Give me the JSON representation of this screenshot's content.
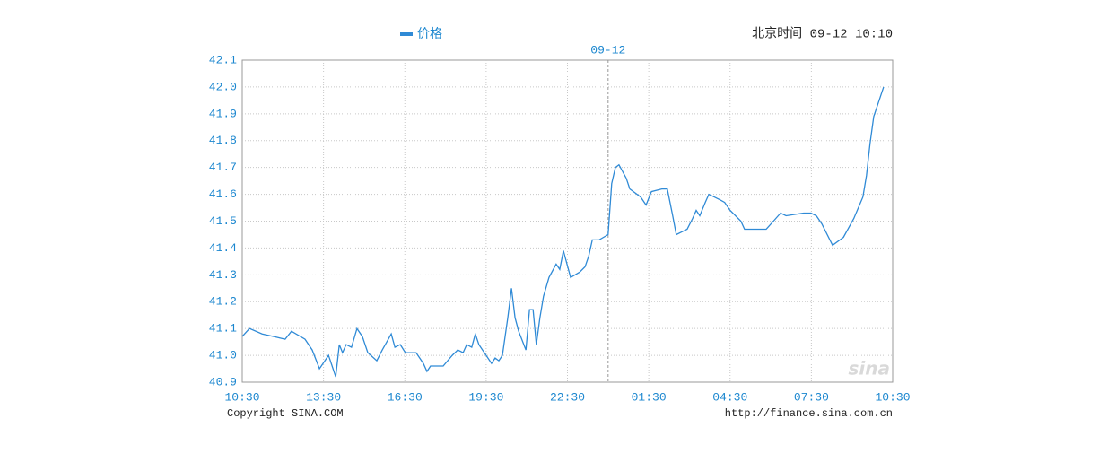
{
  "chart_data": {
    "type": "line",
    "legend": "价格",
    "header": "北京时间 09-12 10:10",
    "date_label": "09-12",
    "copyright": "Copyright  SINA.COM",
    "source_url": "http://finance.sina.com.cn",
    "watermark": "sina",
    "color": "#2f8ad6",
    "grid": true,
    "xlim": [
      "10:30",
      "10:30"
    ],
    "xticks": [
      "10:30",
      "13:30",
      "16:30",
      "19:30",
      "22:30",
      "01:30",
      "04:30",
      "07:30",
      "10:30"
    ],
    "ylim": [
      40.9,
      42.1
    ],
    "yticks": [
      40.9,
      {
        "value": 41,
        "label": "41.0"
      },
      41.1,
      41.2,
      41.3,
      41.4,
      41.5,
      41.6,
      41.7,
      41.8,
      41.9,
      {
        "value": 42,
        "label": "42.0"
      },
      42.1
    ],
    "x": [
      "10:30",
      "10:46",
      "11:14",
      "11:40",
      "12:05",
      "12:19",
      "12:49",
      "13:05",
      "13:21",
      "13:41",
      "13:57",
      "14:05",
      "14:12",
      "14:20",
      "14:32",
      "14:44",
      "14:56",
      "15:08",
      "15:28",
      "15:40",
      "16:00",
      "16:08",
      "16:20",
      "16:31",
      "16:55",
      "17:11",
      "17:19",
      "17:27",
      "17:55",
      "18:15",
      "18:27",
      "18:39",
      "18:47",
      "18:58",
      "19:06",
      "19:14",
      "19:34",
      "19:42",
      "19:50",
      "19:58",
      "20:06",
      "20:18",
      "20:26",
      "20:34",
      "20:42",
      "20:58",
      "21:06",
      "21:14",
      "21:21",
      "21:29",
      "21:37",
      "21:49",
      "22:05",
      "22:13",
      "22:21",
      "22:29",
      "22:37",
      "22:57",
      "23:09",
      "23:17",
      "23:25",
      "23:40",
      "00:00",
      "00:08",
      "00:16",
      "00:24",
      "00:40",
      "00:48",
      "01:12",
      "01:24",
      "01:36",
      "01:59",
      "02:11",
      "02:23",
      "02:31",
      "02:55",
      "03:07",
      "03:15",
      "03:23",
      "03:35",
      "03:43",
      "04:07",
      "04:18",
      "04:30",
      "04:54",
      "05:02",
      "05:50",
      "06:06",
      "06:22",
      "06:34",
      "07:13",
      "07:29",
      "07:41",
      "07:53",
      "08:17",
      "08:41",
      "09:04",
      "09:24",
      "09:32",
      "09:40",
      "09:48",
      "10:04",
      "10:10"
    ],
    "series": [
      {
        "name": "价格",
        "color": "#2f8ad6",
        "values": [
          41.07,
          41.1,
          41.08,
          41.07,
          41.06,
          41.09,
          41.06,
          41.02,
          40.95,
          41.0,
          40.92,
          41.04,
          41.01,
          41.04,
          41.03,
          41.1,
          41.07,
          41.01,
          40.98,
          41.02,
          41.08,
          41.03,
          41.04,
          41.01,
          41.01,
          40.97,
          40.94,
          40.96,
          40.96,
          41.0,
          41.02,
          41.01,
          41.04,
          41.03,
          41.08,
          41.04,
          40.99,
          40.97,
          40.99,
          40.98,
          41.0,
          41.14,
          41.25,
          41.14,
          41.09,
          41.02,
          41.17,
          41.17,
          41.04,
          41.14,
          41.22,
          41.29,
          41.34,
          41.32,
          41.39,
          41.34,
          41.29,
          41.31,
          41.33,
          41.37,
          41.43,
          41.43,
          41.45,
          41.64,
          41.7,
          41.71,
          41.66,
          41.62,
          41.59,
          41.56,
          41.61,
          41.62,
          41.62,
          41.52,
          41.45,
          41.47,
          41.51,
          41.54,
          41.52,
          41.57,
          41.6,
          41.58,
          41.57,
          41.54,
          41.5,
          41.47,
          41.47,
          41.5,
          41.53,
          41.52,
          41.53,
          41.53,
          41.52,
          41.49,
          41.41,
          41.44,
          41.51,
          41.59,
          41.67,
          41.79,
          41.89,
          41.97,
          42.0
        ]
      }
    ]
  }
}
